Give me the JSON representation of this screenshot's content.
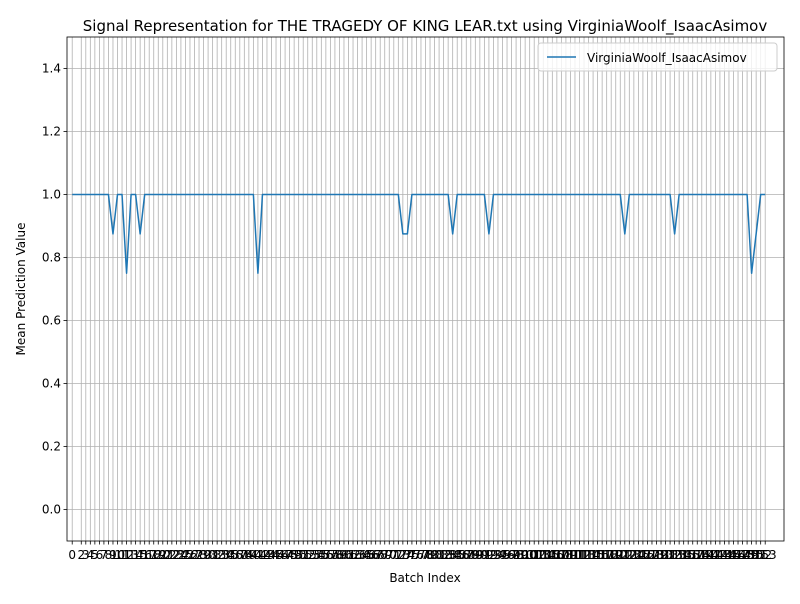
{
  "chart_data": {
    "type": "line",
    "title": "Signal Representation for THE TRAGEDY OF KING LEAR.txt using VirginiaWoolf_IsaacAsimov",
    "xlabel": "Batch Index",
    "ylabel": "Mean Prediction Value",
    "ylim": [
      -0.1,
      1.5
    ],
    "xlim": [
      -1.15,
      157.15
    ],
    "grid": true,
    "legend_position": "upper right",
    "y_ticks": [
      0.0,
      0.2,
      0.4,
      0.6,
      0.8,
      1.0,
      1.2,
      1.4
    ],
    "y_tick_labels": [
      "0.0",
      "0.2",
      "0.4",
      "0.6",
      "0.8",
      "1.0",
      "1.2",
      "1.4"
    ],
    "x_ticks": [
      0,
      2,
      3,
      4,
      5,
      6,
      7,
      8,
      9,
      10,
      11,
      12,
      13,
      14,
      15,
      16,
      17,
      18,
      19,
      20,
      21,
      22,
      23,
      24,
      25,
      26,
      27,
      28,
      29,
      30,
      31,
      32,
      33,
      34,
      35,
      36,
      37,
      38,
      39,
      40,
      41,
      42,
      43,
      44,
      45,
      46,
      47,
      48,
      49,
      50,
      51,
      52,
      53,
      54,
      55,
      56,
      57,
      58,
      59,
      60,
      61,
      62,
      63,
      64,
      65,
      66,
      67,
      68,
      69,
      70,
      71,
      72,
      73,
      74,
      75,
      76,
      77,
      78,
      79,
      80,
      81,
      82,
      83,
      84,
      85,
      86,
      87,
      88,
      89,
      90,
      91,
      92,
      93,
      94,
      95,
      96,
      97,
      98,
      99,
      100,
      101,
      102,
      103,
      104,
      105,
      106,
      107,
      108,
      109,
      110,
      111,
      112,
      113,
      114,
      115,
      116,
      117,
      118,
      119,
      120,
      121,
      122,
      123,
      124,
      125,
      126,
      127,
      128,
      129,
      130,
      131,
      132,
      133,
      134,
      135,
      136,
      137,
      138,
      139,
      140,
      141,
      142,
      143,
      144,
      145,
      146,
      147,
      148,
      149,
      150,
      151,
      152,
      153
    ],
    "x_tick_labels": [
      "0",
      "2",
      "3",
      "4",
      "5",
      "6",
      "7",
      "8",
      "9",
      "10",
      "11",
      "12",
      "13",
      "14",
      "15",
      "16",
      "17",
      "18",
      "19",
      "20",
      "21",
      "22",
      "23",
      "24",
      "25",
      "26",
      "27",
      "28",
      "29",
      "30",
      "31",
      "32",
      "33",
      "34",
      "35",
      "36",
      "37",
      "38",
      "39",
      "40",
      "41",
      "42",
      "43",
      "44",
      "45",
      "46",
      "47",
      "48",
      "49",
      "50",
      "51",
      "52",
      "53",
      "54",
      "55",
      "56",
      "57",
      "58",
      "59",
      "60",
      "61",
      "62",
      "63",
      "64",
      "65",
      "66",
      "67",
      "68",
      "69",
      "70",
      "71",
      "72",
      "73",
      "74",
      "75",
      "76",
      "77",
      "78",
      "79",
      "80",
      "81",
      "82",
      "83",
      "84",
      "85",
      "86",
      "87",
      "88",
      "89",
      "90",
      "91",
      "92",
      "93",
      "94",
      "95",
      "96",
      "97",
      "98",
      "99",
      "100",
      "101",
      "102",
      "103",
      "104",
      "105",
      "106",
      "107",
      "108",
      "109",
      "110",
      "111",
      "112",
      "113",
      "114",
      "115",
      "116",
      "117",
      "118",
      "119",
      "120",
      "121",
      "122",
      "123",
      "124",
      "125",
      "126",
      "127",
      "128",
      "129",
      "130",
      "131",
      "132",
      "133",
      "134",
      "135",
      "136",
      "137",
      "138",
      "139",
      "140",
      "141",
      "142",
      "143",
      "144",
      "145",
      "146",
      "147",
      "148",
      "149",
      "150",
      "151",
      "152",
      "153"
    ],
    "series": [
      {
        "name": "VirginiaWoolf_IsaacAsimov",
        "color": "#1f77b4",
        "x": [
          0,
          2,
          3,
          4,
          5,
          6,
          7,
          8,
          9,
          10,
          11,
          12,
          13,
          14,
          15,
          16,
          17,
          18,
          19,
          20,
          21,
          22,
          23,
          24,
          25,
          26,
          27,
          28,
          29,
          30,
          31,
          32,
          33,
          34,
          35,
          36,
          37,
          38,
          39,
          40,
          41,
          42,
          43,
          44,
          45,
          46,
          47,
          48,
          49,
          50,
          51,
          52,
          53,
          54,
          55,
          56,
          57,
          58,
          59,
          60,
          61,
          62,
          63,
          64,
          65,
          66,
          67,
          68,
          69,
          70,
          71,
          72,
          73,
          74,
          75,
          76,
          77,
          78,
          79,
          80,
          81,
          82,
          83,
          84,
          85,
          86,
          87,
          88,
          89,
          90,
          91,
          92,
          93,
          94,
          95,
          96,
          97,
          98,
          99,
          100,
          101,
          102,
          103,
          104,
          105,
          106,
          107,
          108,
          109,
          110,
          111,
          112,
          113,
          114,
          115,
          116,
          117,
          118,
          119,
          120,
          121,
          122,
          123,
          124,
          125,
          126,
          127,
          128,
          129,
          130,
          131,
          132,
          133,
          134,
          135,
          136,
          137,
          138,
          139,
          140,
          141,
          142,
          143,
          144,
          145,
          146,
          147,
          148,
          149,
          150,
          151,
          152,
          153
        ],
        "y": [
          1.0,
          1.0,
          1.0,
          1.0,
          1.0,
          1.0,
          1.0,
          1.0,
          0.875,
          1.0,
          1.0,
          0.75,
          1.0,
          1.0,
          0.875,
          1.0,
          1.0,
          1.0,
          1.0,
          1.0,
          1.0,
          1.0,
          1.0,
          1.0,
          1.0,
          1.0,
          1.0,
          1.0,
          1.0,
          1.0,
          1.0,
          1.0,
          1.0,
          1.0,
          1.0,
          1.0,
          1.0,
          1.0,
          1.0,
          1.0,
          0.75,
          1.0,
          1.0,
          1.0,
          1.0,
          1.0,
          1.0,
          1.0,
          1.0,
          1.0,
          1.0,
          1.0,
          1.0,
          1.0,
          1.0,
          1.0,
          1.0,
          1.0,
          1.0,
          1.0,
          1.0,
          1.0,
          1.0,
          1.0,
          1.0,
          1.0,
          1.0,
          1.0,
          1.0,
          1.0,
          1.0,
          1.0,
          0.875,
          0.875,
          1.0,
          1.0,
          1.0,
          1.0,
          1.0,
          1.0,
          1.0,
          1.0,
          1.0,
          0.875,
          1.0,
          1.0,
          1.0,
          1.0,
          1.0,
          1.0,
          1.0,
          0.875,
          1.0,
          1.0,
          1.0,
          1.0,
          1.0,
          1.0,
          1.0,
          1.0,
          1.0,
          1.0,
          1.0,
          1.0,
          1.0,
          1.0,
          1.0,
          1.0,
          1.0,
          1.0,
          1.0,
          1.0,
          1.0,
          1.0,
          1.0,
          1.0,
          1.0,
          1.0,
          1.0,
          1.0,
          1.0,
          0.875,
          1.0,
          1.0,
          1.0,
          1.0,
          1.0,
          1.0,
          1.0,
          1.0,
          1.0,
          1.0,
          0.875,
          1.0,
          1.0,
          1.0,
          1.0,
          1.0,
          1.0,
          1.0,
          1.0,
          1.0,
          1.0,
          1.0,
          1.0,
          1.0,
          1.0,
          1.0,
          1.0,
          0.75,
          0.875,
          1.0,
          1.0
        ]
      }
    ]
  }
}
